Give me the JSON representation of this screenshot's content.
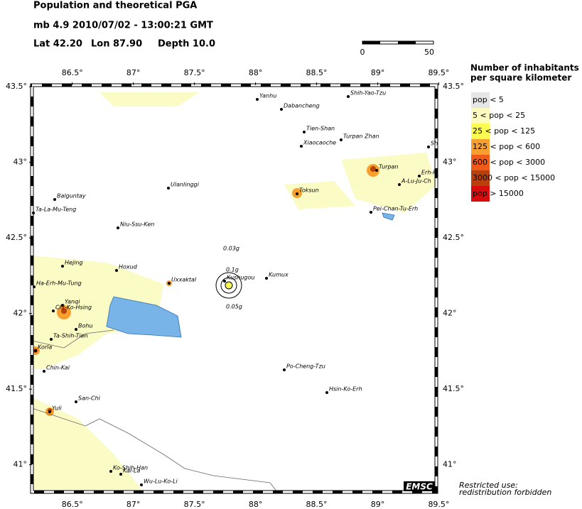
{
  "header": {
    "title": "Population and theoretical PGA",
    "event": "mb 4.9  2010/07/02 - 13:00:21 GMT",
    "lat": "Lat 42.20",
    "lon": "Lon  87.90",
    "depth": "Depth  10.0"
  },
  "scale_bar": {
    "start": "0",
    "end": "50"
  },
  "legend": {
    "title_lines": [
      "Number of inhabitants",
      "per square kilometer"
    ],
    "items": [
      {
        "label": "pop < 5",
        "color": "#e6e6e6"
      },
      {
        "label": "5 < pop < 25",
        "color": "#fbfbc0"
      },
      {
        "label": "25 < pop < 125",
        "color": "#fafa50"
      },
      {
        "label": "125 < pop < 600",
        "color": "#f7a030"
      },
      {
        "label": "600 < pop < 3000",
        "color": "#f25a1a"
      },
      {
        "label": "3000 < pop < 15000",
        "color": "#b8400c"
      },
      {
        "label": "pop > 15000",
        "color": "#d80c0c"
      }
    ]
  },
  "map": {
    "xlim": [
      86.17,
      89.48
    ],
    "ylim": [
      40.82,
      43.51
    ],
    "xticks": [
      {
        "value": 86.5,
        "label": "86.5°"
      },
      {
        "value": 87,
        "label": "87°"
      },
      {
        "value": 87.5,
        "label": "87.5°"
      },
      {
        "value": 88,
        "label": "88°"
      },
      {
        "value": 88.5,
        "label": "88.5°"
      },
      {
        "value": 89,
        "label": "89°"
      },
      {
        "value": 89.5,
        "label": "89.5°"
      }
    ],
    "yticks": [
      {
        "value": 43.5,
        "label": "43.5°"
      },
      {
        "value": 43,
        "label": "43°"
      },
      {
        "value": 42.5,
        "label": "42.5°"
      },
      {
        "value": 42,
        "label": "42°"
      },
      {
        "value": 41.5,
        "label": "41.5°"
      },
      {
        "value": 41,
        "label": "41°"
      }
    ],
    "pga_labels": [
      "0.03g",
      "0.1g",
      "0.05g"
    ],
    "cities": [
      "Yanhu",
      "Dabancheng",
      "Shih-Yao-Tzu",
      "Tien-Shan",
      "Turpan Zhan",
      "Xiaocaoche",
      "Sh",
      "Turpan",
      "Erh-F",
      "A-Lu-Ju-Ch",
      "Toksun",
      "Ulanlinggi",
      "Balguntay",
      "Ta-La-Mu-Teng",
      "Pei-Chan-Tu-Erh",
      "Niu-Ssu-Ken",
      "Hejing",
      "Hoxud",
      "Uxxaktal",
      "Kushugou",
      "Kumux",
      "Ha-Erh-Mu-Tung",
      "Yanqi",
      "Chi-Ko-Hsing",
      "Bohu",
      "Ta-Shih-Tien",
      "Korla",
      "Chin-Kai",
      "Po-Cheng-Tzu",
      "Hsin-Ko-Erh",
      "San-Chi",
      "Yuli",
      "Ko-Shih-Han",
      "Kai-La",
      "Wu-Lu-Ko-Li"
    ],
    "logo": "EMSC"
  },
  "footer": [
    "Restricted use:",
    "redistribution forbidden"
  ]
}
